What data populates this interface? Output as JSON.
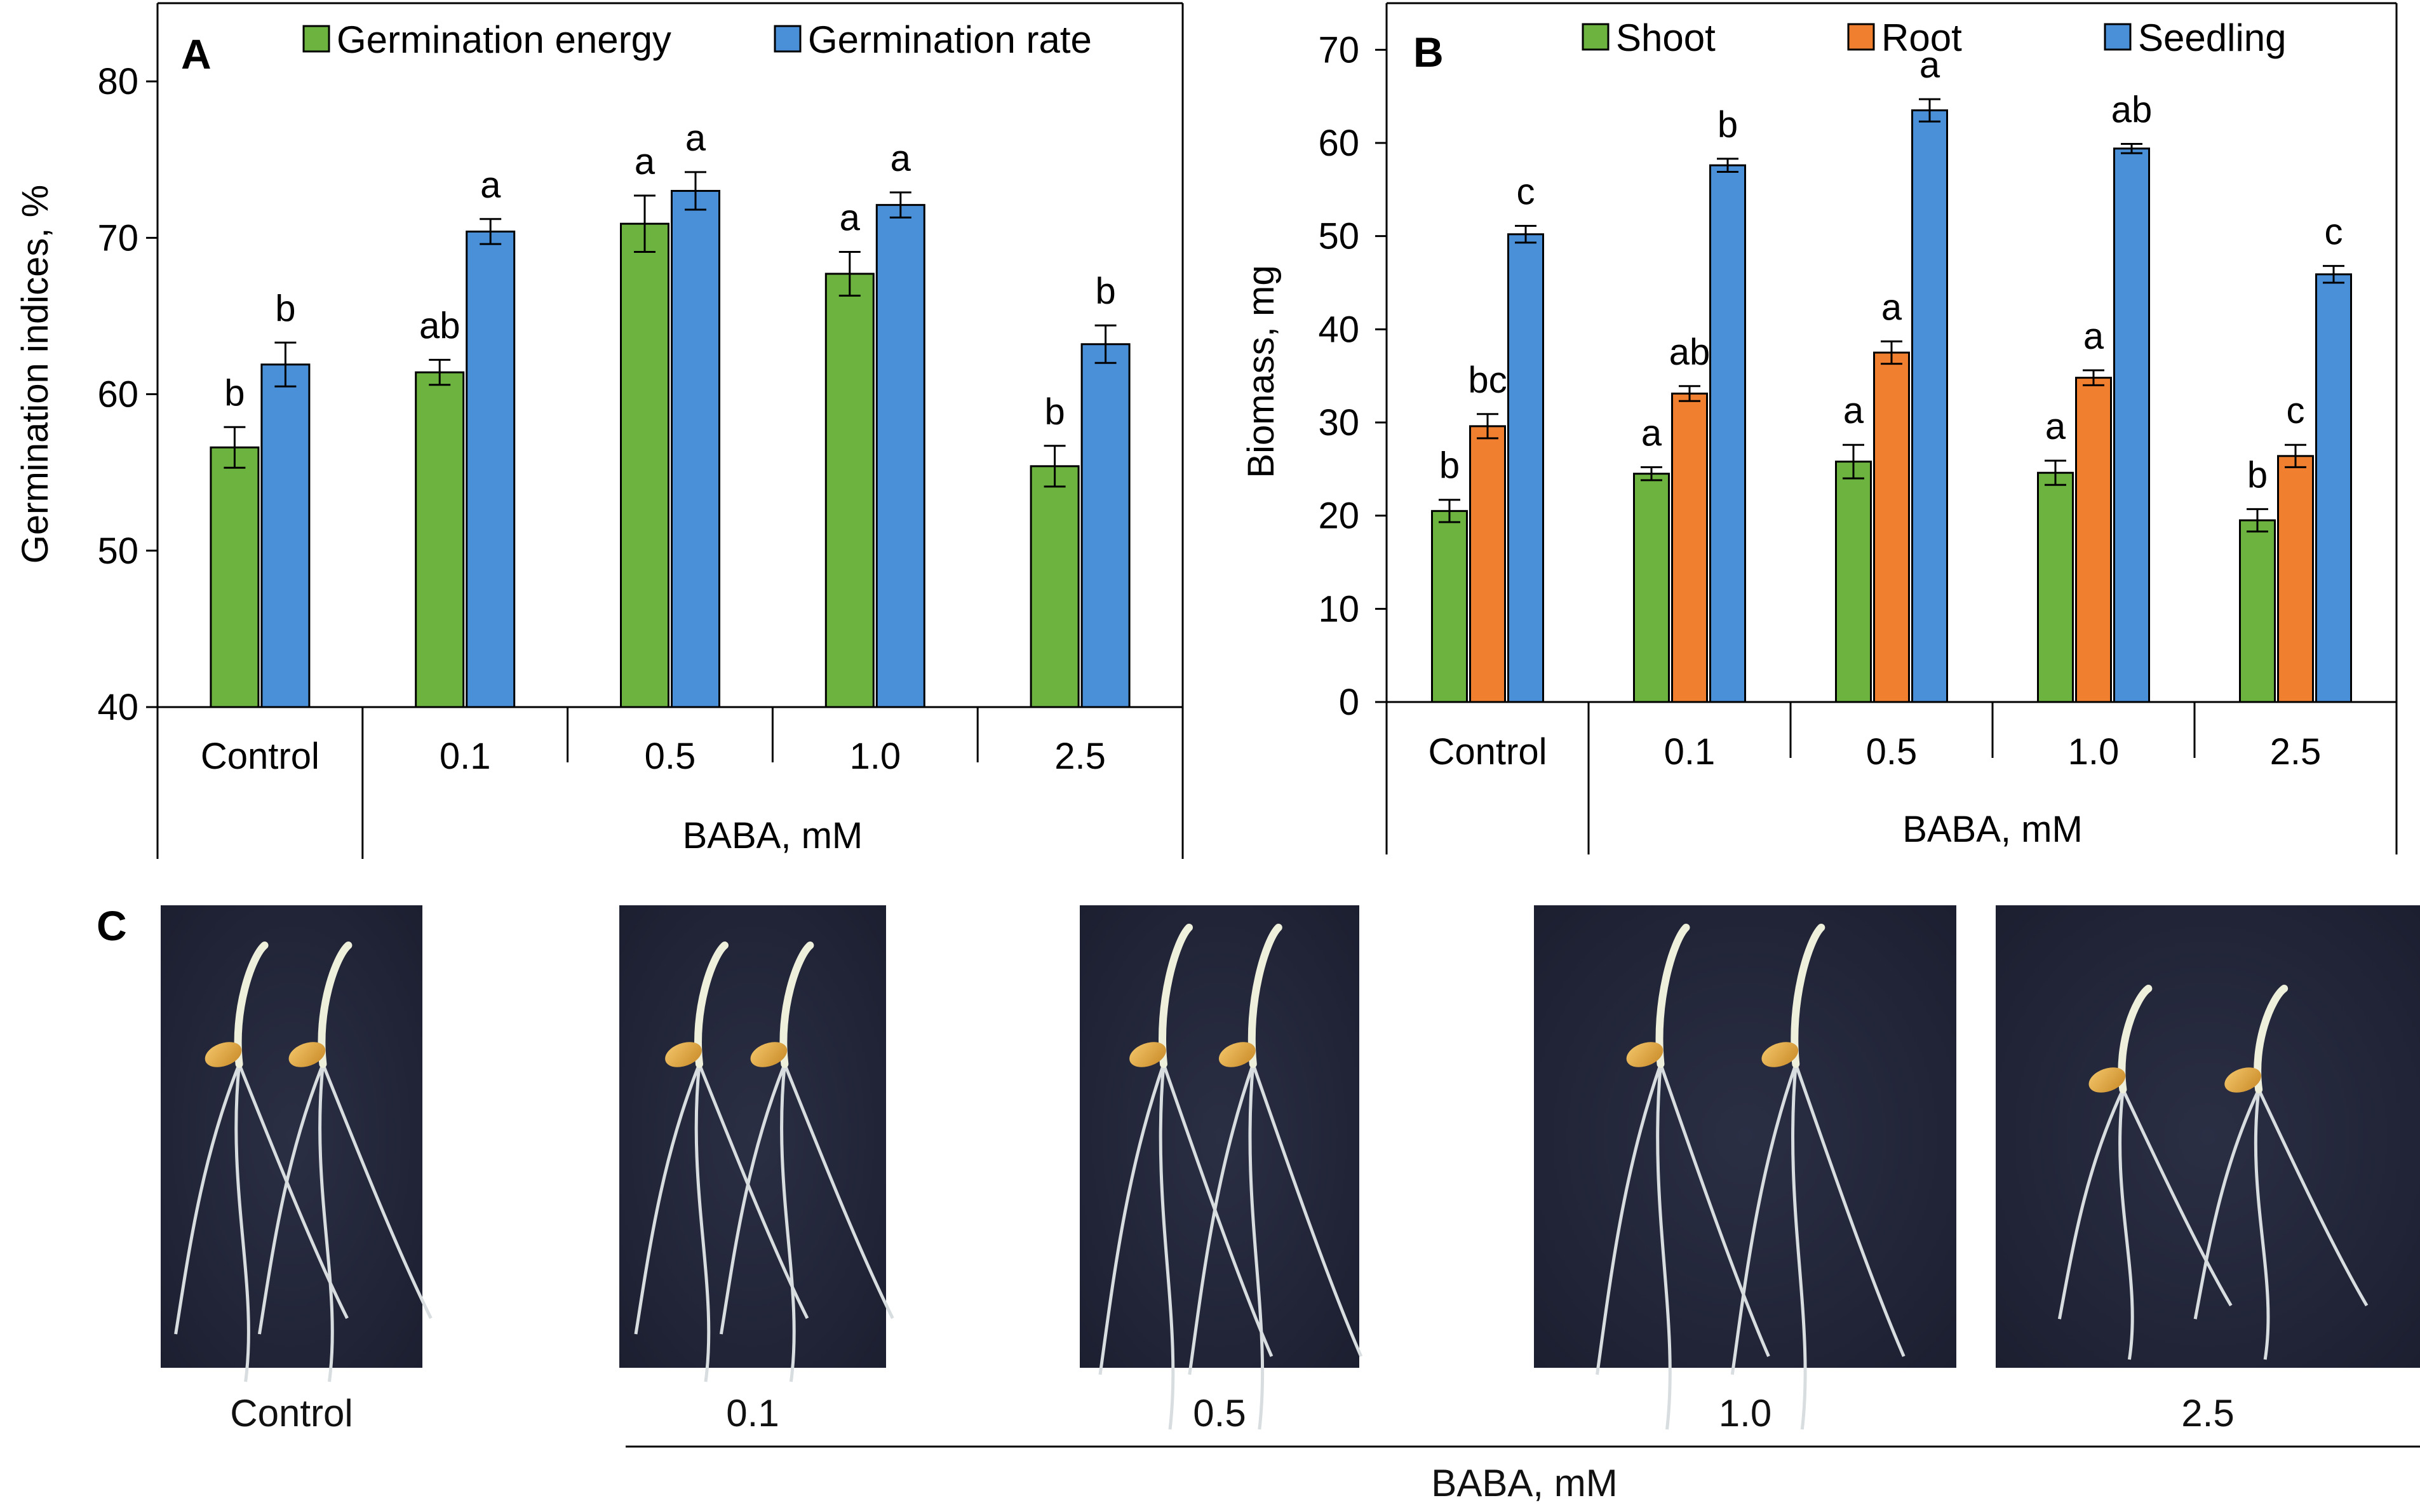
{
  "panels": {
    "A": {
      "letter": "A"
    },
    "B": {
      "letter": "B"
    },
    "C": {
      "letter": "C"
    }
  },
  "chart_data": [
    {
      "id": "A",
      "type": "bar",
      "title": "",
      "ylabel": "Germination indices, %",
      "xlabel": "BABA, mM",
      "ylim": [
        40,
        85
      ],
      "yticks": [
        40,
        50,
        60,
        70,
        80
      ],
      "categories": [
        "Control",
        "0.1",
        "0.5",
        "1.0",
        "2.5"
      ],
      "legend_position": "top",
      "grid": false,
      "series": [
        {
          "name": "Germination energy",
          "color": "#6db33f",
          "values": [
            56.6,
            61.4,
            70.9,
            67.7,
            55.4
          ],
          "errors": [
            1.3,
            0.8,
            1.8,
            1.4,
            1.3
          ],
          "labels": [
            "b",
            "ab",
            "a",
            "a",
            "b"
          ]
        },
        {
          "name": "Germination rate",
          "color": "#4a90d9",
          "values": [
            61.9,
            70.4,
            73.0,
            72.1,
            63.2
          ],
          "errors": [
            1.4,
            0.8,
            1.2,
            0.8,
            1.2
          ],
          "labels": [
            "b",
            "a",
            "a",
            "a",
            "b"
          ]
        }
      ]
    },
    {
      "id": "B",
      "type": "bar",
      "title": "",
      "ylabel": "Biomass, mg",
      "xlabel": "BABA, mM",
      "ylim": [
        0,
        75
      ],
      "yticks": [
        0,
        10,
        20,
        30,
        40,
        50,
        60,
        70
      ],
      "categories": [
        "Control",
        "0.1",
        "0.5",
        "1.0",
        "2.5"
      ],
      "legend_position": "top",
      "grid": false,
      "series": [
        {
          "name": "Shoot",
          "color": "#6db33f",
          "values": [
            20.5,
            24.5,
            25.8,
            24.6,
            19.5
          ],
          "errors": [
            1.2,
            0.7,
            1.8,
            1.3,
            1.2
          ],
          "labels": [
            "b",
            "a",
            "a",
            "a",
            "b"
          ]
        },
        {
          "name": "Root",
          "color": "#f07f2f",
          "values": [
            29.6,
            33.1,
            37.5,
            34.8,
            26.4
          ],
          "errors": [
            1.3,
            0.8,
            1.2,
            0.8,
            1.2
          ],
          "labels": [
            "bc",
            "ab",
            "a",
            "a",
            "c"
          ]
        },
        {
          "name": "Seedling",
          "color": "#4a90d9",
          "values": [
            50.2,
            57.6,
            63.5,
            59.4,
            45.9
          ],
          "errors": [
            0.9,
            0.7,
            1.2,
            0.5,
            0.9
          ],
          "labels": [
            "c",
            "b",
            "a",
            "ab",
            "c"
          ]
        }
      ]
    }
  ],
  "photos": {
    "labels": [
      "Control",
      "0.1",
      "0.5",
      "1.0",
      "2.5"
    ],
    "xlabel": "BABA, mM"
  }
}
